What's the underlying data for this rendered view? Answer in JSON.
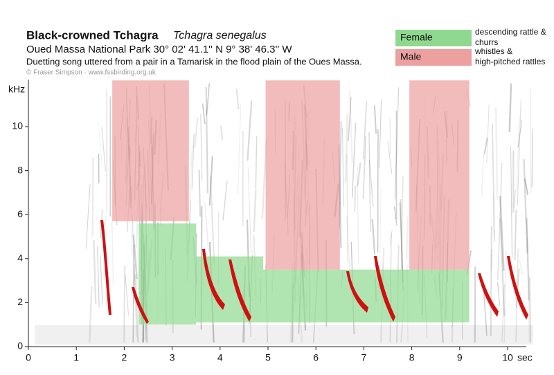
{
  "chart_data": {
    "type": "spectrogram",
    "title": "Black-crowned Tchagra",
    "species": "Tchagra senegalus",
    "subtitle": "Oued Massa National Park 30° 02' 41.1'' N  9° 38' 46.3'' W",
    "description": "Duetting song uttered from a pair in a Tamarisk in the flood plain of the Oues Massa.",
    "credit": "© Fraser Simpson  ·  www.fssbirding.org.uk",
    "y_label": "kHz",
    "x_label": "sec",
    "xlim": [
      0,
      10.5
    ],
    "ylim": [
      0,
      12.1
    ],
    "xticks": [
      0,
      1,
      2,
      3,
      4,
      5,
      6,
      7,
      8,
      9,
      10
    ],
    "yticks": [
      0,
      2,
      4,
      6,
      8,
      10
    ],
    "series": [
      {
        "name": "Female",
        "color": "#8fd88f",
        "description": [
          "descending rattle &",
          "churrs"
        ],
        "regions": [
          {
            "x": [
              2.3,
              3.5
            ],
            "y": [
              1.0,
              5.6
            ]
          },
          {
            "x": [
              3.5,
              4.9
            ],
            "y": [
              1.1,
              4.1
            ]
          },
          {
            "x": [
              4.9,
              9.2
            ],
            "y": [
              1.1,
              3.5
            ]
          }
        ]
      },
      {
        "name": "Male",
        "color": "#eca0a0",
        "description": [
          "whistles &",
          "high-pitched rattles"
        ],
        "regions": [
          {
            "x": [
              1.75,
              3.35
            ],
            "y": [
              5.7,
              12.1
            ]
          },
          {
            "x": [
              4.95,
              6.5
            ],
            "y": [
              3.5,
              12.1
            ]
          },
          {
            "x": [
              7.95,
              9.2
            ],
            "y": [
              3.5,
              12.1
            ]
          }
        ]
      }
    ]
  }
}
